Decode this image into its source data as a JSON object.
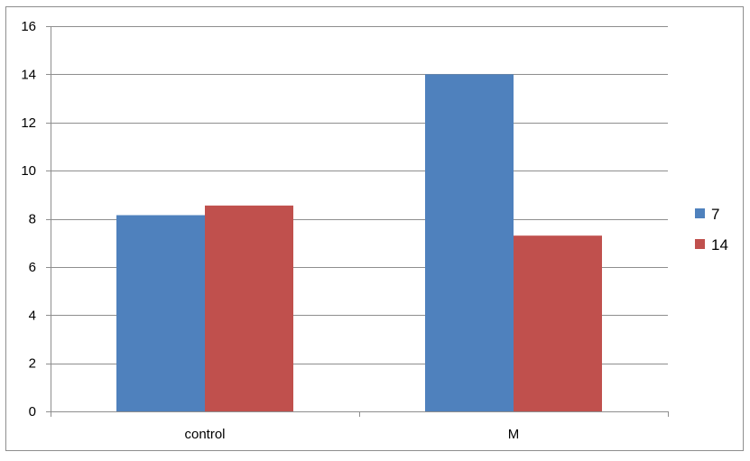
{
  "chart_data": {
    "type": "bar",
    "categories": [
      "control",
      "M"
    ],
    "series": [
      {
        "name": "7",
        "values": [
          8.15,
          14.0
        ],
        "color": "#4f81bd"
      },
      {
        "name": "14",
        "values": [
          8.55,
          7.3
        ],
        "color": "#c0504d"
      }
    ],
    "ylim": [
      0,
      16
    ],
    "yticks": [
      0,
      2,
      4,
      6,
      8,
      10,
      12,
      14,
      16
    ],
    "grid": true,
    "legend_position": "right",
    "colors": {
      "gridline": "#8e8e8e",
      "axis": "#8e8e8e",
      "border": "#8e8e8e"
    }
  }
}
